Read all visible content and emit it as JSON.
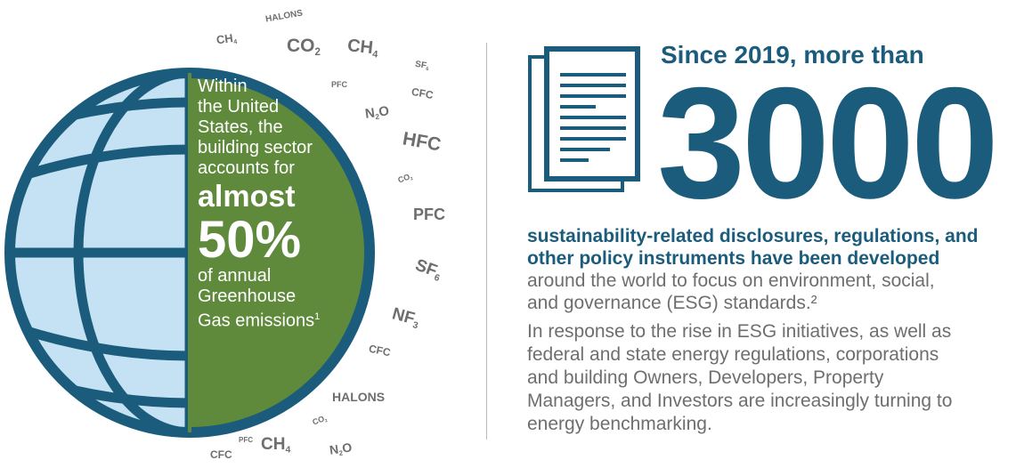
{
  "gases": [
    {
      "id": "ch4-a",
      "text": "CH",
      "sub": "4"
    },
    {
      "id": "halons-a",
      "text": "HALONS",
      "sub": ""
    },
    {
      "id": "co2-a",
      "text": "CO",
      "sub": "2"
    },
    {
      "id": "ch4-b",
      "text": "CH",
      "sub": "4"
    },
    {
      "id": "pfc-a",
      "text": "PFC",
      "sub": ""
    },
    {
      "id": "sf6-a",
      "text": "SF",
      "sub": "6"
    },
    {
      "id": "cfc-a",
      "text": "CFC",
      "sub": ""
    },
    {
      "id": "n2o-a",
      "text": "N",
      "sub": "2",
      "tail": "O"
    },
    {
      "id": "hfc-a",
      "text": "HFC",
      "sub": ""
    },
    {
      "id": "co2-b",
      "text": "CO",
      "sub": "2"
    },
    {
      "id": "pfc-b",
      "text": "PFC",
      "sub": ""
    },
    {
      "id": "sf6-b",
      "text": "SF",
      "sub": "6"
    },
    {
      "id": "nf3-a",
      "text": "NF",
      "sub": "3"
    },
    {
      "id": "cfc-b",
      "text": "CFC",
      "sub": ""
    },
    {
      "id": "halons-b",
      "text": "HALONS",
      "sub": ""
    },
    {
      "id": "co2-c",
      "text": "CO",
      "sub": "2"
    },
    {
      "id": "pfc-c",
      "text": "PFC",
      "sub": ""
    },
    {
      "id": "ch4-c",
      "text": "CH",
      "sub": "4"
    },
    {
      "id": "cfc-c",
      "text": "CFC",
      "sub": ""
    },
    {
      "id": "n2o-b",
      "text": "N",
      "sub": "2",
      "tail": "O"
    }
  ],
  "globe_text": {
    "lines_top": [
      "Within",
      "the United",
      "States, the",
      "building sector",
      "accounts for"
    ],
    "almost": "almost",
    "percent": "50%",
    "lines_bottom": [
      "of annual",
      "Greenhouse"
    ],
    "last_line": "Gas emissions",
    "footnote": "1"
  },
  "stat": {
    "since": "Since 2019, more than",
    "number": "3000",
    "bold_lines": [
      "sustainability-related disclosures, regulations, and",
      "other policy instruments have been developed"
    ],
    "normal_lines": [
      "around the world to focus on environment, social,",
      "and governance (ESG) standards.²"
    ],
    "para2_lines": [
      "In response to the rise in ESG initiatives, as well as",
      "federal and state energy regulations, corporations",
      "and building Owners, Developers, Property",
      "Managers, and Investors are increasingly turning to",
      "energy benchmarking."
    ]
  },
  "colors": {
    "navy": "#1b5c7c",
    "globe_fill": "#c5e2f5",
    "green": "#5f8a3c",
    "gray_text": "#6d6e70",
    "divider": "#b9b9b9"
  }
}
